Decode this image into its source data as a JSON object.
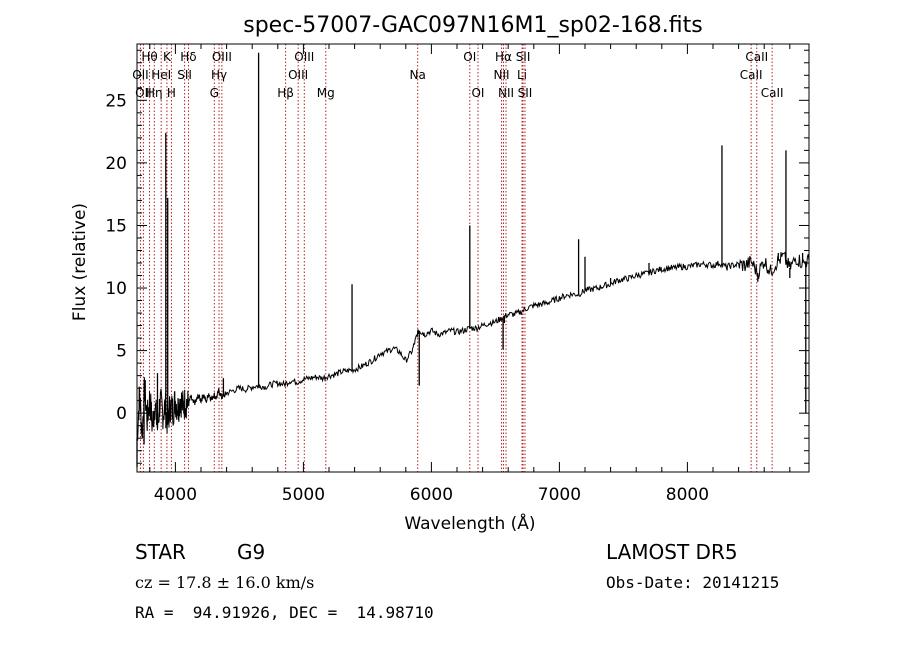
{
  "chart_data": {
    "type": "line",
    "title": "spec-57007-GAC097N16M1_sp02-168.fits",
    "xlabel": "Wavelength (Å)",
    "ylabel": "Flux (relative)",
    "xlim": [
      3700,
      8950
    ],
    "ylim": [
      -4.7,
      29.5
    ],
    "xticks": [
      4000,
      5000,
      6000,
      7000,
      8000
    ],
    "yticks": [
      0,
      5,
      10,
      15,
      20,
      25
    ],
    "xtick_labels": [
      "4000",
      "5000",
      "6000",
      "7000",
      "8000"
    ],
    "ytick_labels": [
      "0",
      "5",
      "10",
      "15",
      "20",
      "25"
    ],
    "grid": false,
    "series": [
      {
        "values_xy": [
          [
            3700,
            -2.0
          ],
          [
            3720,
            1.5
          ],
          [
            3740,
            -1.5
          ],
          [
            3760,
            2.0
          ],
          [
            3780,
            -0.5
          ],
          [
            3800,
            1.2
          ],
          [
            3820,
            -1.0
          ],
          [
            3840,
            0.8
          ],
          [
            3860,
            -1.2
          ],
          [
            3880,
            1.0
          ],
          [
            3900,
            0.0
          ],
          [
            3920,
            0.5
          ],
          [
            3940,
            -0.8
          ],
          [
            3960,
            0.6
          ],
          [
            3980,
            0.2
          ],
          [
            4000,
            1.0
          ],
          [
            4020,
            0.4
          ],
          [
            4040,
            1.2
          ],
          [
            4060,
            0.5
          ],
          [
            4080,
            1.0
          ],
          [
            4100,
            0.6
          ],
          [
            4120,
            1.3
          ],
          [
            4140,
            0.8
          ],
          [
            4160,
            0.9
          ],
          [
            4180,
            1.4
          ],
          [
            4200,
            1.0
          ],
          [
            4220,
            1.5
          ],
          [
            4240,
            0.9
          ],
          [
            4260,
            1.6
          ],
          [
            4280,
            1.1
          ],
          [
            4300,
            1.5
          ],
          [
            4320,
            1.2
          ],
          [
            4340,
            1.8
          ],
          [
            4360,
            1.3
          ],
          [
            4380,
            1.4
          ],
          [
            4400,
            1.6
          ],
          [
            4450,
            1.8
          ],
          [
            4500,
            2.0
          ],
          [
            4550,
            1.9
          ],
          [
            4600,
            2.1
          ],
          [
            4650,
            2.2
          ],
          [
            4700,
            2.1
          ],
          [
            4750,
            2.3
          ],
          [
            4800,
            2.4
          ],
          [
            4850,
            2.3
          ],
          [
            4900,
            2.6
          ],
          [
            4950,
            2.5
          ],
          [
            5000,
            2.7
          ],
          [
            5050,
            2.8
          ],
          [
            5100,
            2.9
          ],
          [
            5150,
            2.8
          ],
          [
            5200,
            3.0
          ],
          [
            5250,
            3.1
          ],
          [
            5300,
            3.3
          ],
          [
            5350,
            3.4
          ],
          [
            5400,
            3.5
          ],
          [
            5450,
            3.7
          ],
          [
            5500,
            4.0
          ],
          [
            5550,
            4.3
          ],
          [
            5600,
            4.8
          ],
          [
            5650,
            4.9
          ],
          [
            5700,
            5.2
          ],
          [
            5750,
            4.9
          ],
          [
            5800,
            4.2
          ],
          [
            5850,
            5.0
          ],
          [
            5880,
            6.0
          ],
          [
            5900,
            6.6
          ],
          [
            5920,
            6.5
          ],
          [
            5950,
            6.3
          ],
          [
            6000,
            6.6
          ],
          [
            6050,
            6.3
          ],
          [
            6100,
            6.4
          ],
          [
            6150,
            6.6
          ],
          [
            6200,
            6.5
          ],
          [
            6250,
            6.6
          ],
          [
            6300,
            6.8
          ],
          [
            6350,
            6.8
          ],
          [
            6400,
            7.0
          ],
          [
            6450,
            7.2
          ],
          [
            6500,
            7.3
          ],
          [
            6550,
            7.6
          ],
          [
            6600,
            7.9
          ],
          [
            6650,
            7.9
          ],
          [
            6700,
            8.1
          ],
          [
            6750,
            8.4
          ],
          [
            6800,
            8.6
          ],
          [
            6850,
            8.7
          ],
          [
            6900,
            8.8
          ],
          [
            6950,
            9.0
          ],
          [
            7000,
            9.2
          ],
          [
            7050,
            9.4
          ],
          [
            7100,
            9.5
          ],
          [
            7150,
            9.5
          ],
          [
            7200,
            9.8
          ],
          [
            7250,
            9.9
          ],
          [
            7300,
            10.0
          ],
          [
            7350,
            10.2
          ],
          [
            7400,
            10.3
          ],
          [
            7450,
            10.6
          ],
          [
            7500,
            10.7
          ],
          [
            7550,
            10.8
          ],
          [
            7600,
            11.0
          ],
          [
            7650,
            11.1
          ],
          [
            7700,
            11.2
          ],
          [
            7750,
            11.4
          ],
          [
            7800,
            11.5
          ],
          [
            7850,
            11.6
          ],
          [
            7900,
            11.6
          ],
          [
            7950,
            11.7
          ],
          [
            8000,
            11.7
          ],
          [
            8050,
            11.8
          ],
          [
            8100,
            11.9
          ],
          [
            8150,
            11.9
          ],
          [
            8200,
            11.8
          ],
          [
            8250,
            12.0
          ],
          [
            8300,
            11.7
          ],
          [
            8350,
            11.8
          ],
          [
            8400,
            11.9
          ],
          [
            8450,
            11.8
          ],
          [
            8500,
            12.1
          ],
          [
            8550,
            11.2
          ],
          [
            8600,
            12.2
          ],
          [
            8650,
            11.3
          ],
          [
            8700,
            12.1
          ],
          [
            8750,
            12.5
          ],
          [
            8800,
            11.6
          ],
          [
            8850,
            12.4
          ],
          [
            8900,
            12.0
          ],
          [
            8950,
            12.2
          ]
        ],
        "spikes_xy": [
          [
            3700,
            -4.3
          ],
          [
            3755,
            -2.5
          ],
          [
            3860,
            3.2
          ],
          [
            3925,
            22.4
          ],
          [
            3940,
            17.2
          ],
          [
            4375,
            2.8
          ],
          [
            4650,
            28.8
          ],
          [
            4655,
            2.0
          ],
          [
            5380,
            10.3
          ],
          [
            5905,
            2.2
          ],
          [
            6300,
            15.0
          ],
          [
            6560,
            5.1
          ],
          [
            6570,
            7.2
          ],
          [
            7150,
            13.9
          ],
          [
            7200,
            12.5
          ],
          [
            7400,
            10.8
          ],
          [
            7700,
            12.0
          ],
          [
            8270,
            21.4
          ],
          [
            8310,
            11.4
          ],
          [
            8550,
            10.5
          ],
          [
            8710,
            12.8
          ],
          [
            8770,
            21.0
          ],
          [
            8800,
            10.8
          ],
          [
            8900,
            12.8
          ],
          [
            8925,
            0.0
          ]
        ]
      }
    ],
    "lines": [
      {
        "wl": 3727,
        "label": "OII",
        "row": 2
      },
      {
        "wl": 3750,
        "label": "OII",
        "row": 3
      },
      {
        "wl": 3798,
        "label": "Hθ",
        "row": 1
      },
      {
        "wl": 3835,
        "label": "Hη",
        "row": 3
      },
      {
        "wl": 3889,
        "label": "HeI",
        "row": 2
      },
      {
        "wl": 3934,
        "label": "K",
        "row": 1
      },
      {
        "wl": 3969,
        "label": "H",
        "row": 3
      },
      {
        "wl": 4072,
        "label": "SII",
        "row": 2
      },
      {
        "wl": 4102,
        "label": "Hδ",
        "row": 1
      },
      {
        "wl": 4304,
        "label": "G",
        "row": 3
      },
      {
        "wl": 4341,
        "label": "Hγ",
        "row": 2
      },
      {
        "wl": 4363,
        "label": "OIII",
        "row": 1
      },
      {
        "wl": 4861,
        "label": "Hβ",
        "row": 3
      },
      {
        "wl": 4959,
        "label": "OIII",
        "row": 2
      },
      {
        "wl": 5007,
        "label": "OIII",
        "row": 1
      },
      {
        "wl": 5175,
        "label": "Mg",
        "row": 3
      },
      {
        "wl": 5893,
        "label": "Na",
        "row": 2
      },
      {
        "wl": 6300,
        "label": "OI",
        "row": 1
      },
      {
        "wl": 6364,
        "label": "OI",
        "row": 3
      },
      {
        "wl": 6548,
        "label": "NII",
        "row": 2
      },
      {
        "wl": 6563,
        "label": "Hα",
        "row": 1
      },
      {
        "wl": 6583,
        "label": "NII",
        "row": 3
      },
      {
        "wl": 6708,
        "label": "Li",
        "row": 2
      },
      {
        "wl": 6716,
        "label": "SII",
        "row": 1
      },
      {
        "wl": 6731,
        "label": "SII",
        "row": 3
      },
      {
        "wl": 8498,
        "label": "CaII",
        "row": 2
      },
      {
        "wl": 8542,
        "label": "CaII",
        "row": 1
      },
      {
        "wl": 8662,
        "label": "CaII",
        "row": 3
      }
    ]
  },
  "info": {
    "class": "STAR",
    "subclass": "G9",
    "survey": "LAMOST DR5",
    "cz": "cz = 17.8 ± 16.0 km/s",
    "obsdate": "Obs-Date: 20141215",
    "radec": "RA =  94.91926, DEC =  14.98710"
  },
  "colors": {
    "spectrum": "#000000",
    "line_markers": "#b22222",
    "axes": "#000000",
    "background": "#ffffff"
  }
}
